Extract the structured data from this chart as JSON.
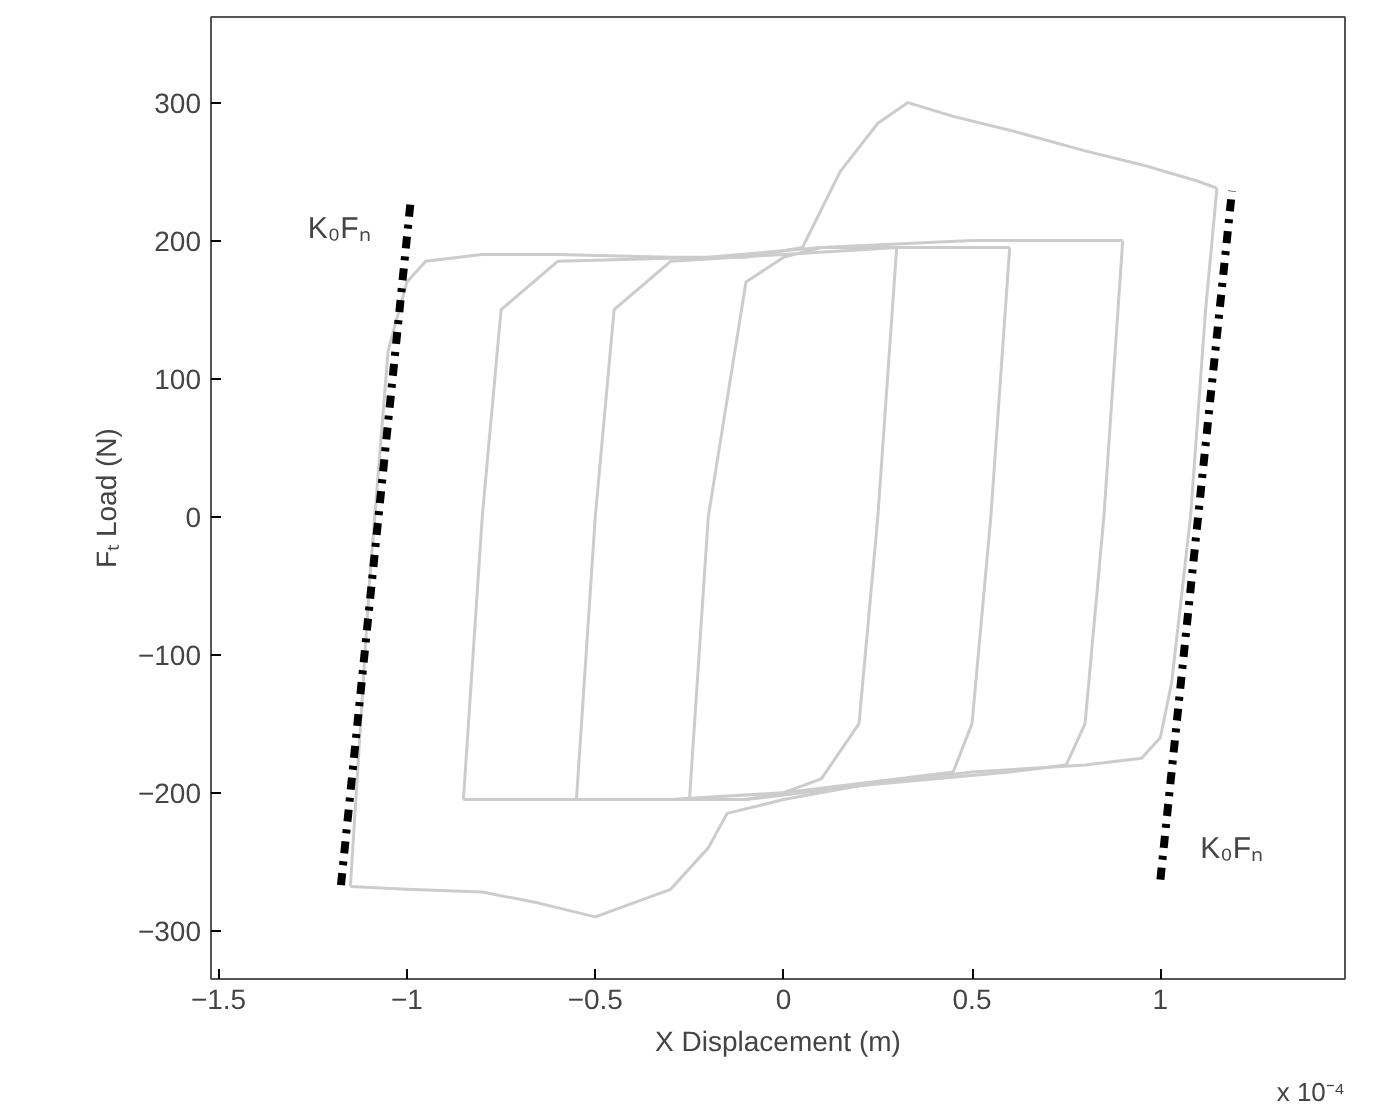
{
  "chart_data": {
    "type": "line",
    "xlabel": "X Displacement (m)",
    "ylabel": "Fₜ Load (N)",
    "xlim": [
      -1.52,
      1.49
    ],
    "ylim": [
      -335,
      362
    ],
    "xticks": [
      -1.5,
      -1,
      -0.5,
      0,
      0.5,
      1
    ],
    "yticks": [
      -300,
      -200,
      -100,
      0,
      100,
      200,
      300
    ],
    "grid": false,
    "series": [
      {
        "color": "#cccccc",
        "x": [
          -1.15,
          -1.1,
          -1.05,
          -1.0,
          -0.95,
          -0.8,
          -0.6,
          -0.3,
          -0.1,
          0.05,
          0.15,
          0.25,
          0.33,
          0.45,
          0.6,
          0.8,
          0.95,
          1.1,
          1.15
        ],
        "values": [
          -268,
          -50,
          120,
          170,
          185,
          190,
          190,
          188,
          188,
          195,
          250,
          285,
          300,
          290,
          280,
          265,
          255,
          243,
          238
        ]
      },
      {
        "color": "#cccccc",
        "x": [
          -1.15,
          -1.0,
          -0.8,
          -0.65,
          -0.5,
          -0.4,
          -0.3,
          -0.2,
          -0.15,
          0.0,
          0.2,
          0.5,
          0.8,
          0.95,
          1.0,
          1.03,
          1.08,
          1.12,
          1.15
        ],
        "values": [
          -268,
          -270,
          -272,
          -280,
          -290,
          -280,
          -270,
          -240,
          -215,
          -205,
          -195,
          -185,
          -180,
          -175,
          -160,
          -120,
          0,
          150,
          238
        ]
      },
      {
        "color": "#cccccc",
        "x": [
          -0.85,
          -0.8,
          -0.75,
          -0.6,
          -0.2,
          0.1,
          0.5,
          0.8,
          0.9
        ],
        "values": [
          -205,
          0,
          150,
          185,
          188,
          195,
          200,
          200,
          200
        ]
      },
      {
        "color": "#cccccc",
        "x": [
          -0.85,
          -0.5,
          -0.1,
          0.2,
          0.6,
          0.75,
          0.8,
          0.85,
          0.9
        ],
        "values": [
          -205,
          -205,
          -205,
          -195,
          -185,
          -180,
          -150,
          0,
          200
        ]
      },
      {
        "color": "#cccccc",
        "x": [
          -0.55,
          -0.5,
          -0.45,
          -0.3,
          0.0,
          0.3,
          0.5,
          0.6
        ],
        "values": [
          -205,
          0,
          150,
          185,
          190,
          195,
          195,
          195
        ]
      },
      {
        "color": "#cccccc",
        "x": [
          -0.55,
          -0.3,
          0.0,
          0.3,
          0.45,
          0.5,
          0.55,
          0.6
        ],
        "values": [
          -205,
          -205,
          -200,
          -190,
          -185,
          -150,
          0,
          195
        ]
      },
      {
        "color": "#cccccc",
        "x": [
          -0.25,
          -0.2,
          -0.1,
          0.0,
          0.1,
          0.25,
          0.3
        ],
        "values": [
          -205,
          0,
          170,
          188,
          195,
          195,
          195
        ]
      },
      {
        "color": "#cccccc",
        "x": [
          -0.25,
          -0.1,
          0.0,
          0.1,
          0.2,
          0.25,
          0.3
        ],
        "values": [
          -205,
          -205,
          -200,
          -190,
          -150,
          0,
          195
        ]
      },
      {
        "color": "#000000",
        "line_style": "dashdot",
        "x": [
          -1.175,
          -0.99
        ],
        "values": [
          -267,
          229
        ]
      },
      {
        "color": "#000000",
        "line_style": "dashdot",
        "x": [
          1.0,
          1.19
        ],
        "values": [
          -263,
          236
        ]
      }
    ],
    "annotations": [
      "K₀Fₙ",
      "K₀Fₙ",
      "x 10⁻⁴"
    ]
  }
}
